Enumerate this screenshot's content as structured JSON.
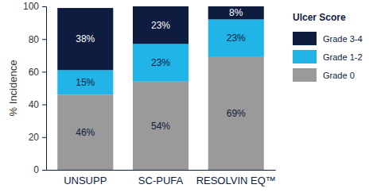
{
  "chart_data": {
    "type": "bar",
    "stacked": true,
    "data_labels": true,
    "grid": false,
    "legend": "right",
    "legend_title": "Ulcer Score",
    "y_label": "% Incidence",
    "categories": [
      "UNSUPP",
      "SC-PUFA",
      "RESOLVIN EQ™"
    ],
    "series": [
      {
        "name": "Grade 0",
        "color": "#9a9a9a",
        "values": [
          46,
          54,
          69
        ],
        "value_labels": [
          "46%",
          "54%",
          "69%"
        ]
      },
      {
        "name": "Grade 1-2",
        "color": "#21b4e6",
        "values": [
          15,
          23,
          23
        ],
        "value_labels": [
          "15%",
          "23%",
          "23%"
        ]
      },
      {
        "name": "Grade 3-4",
        "color": "#0e1c3f",
        "values": [
          38,
          23,
          8
        ],
        "value_labels": [
          "38%",
          "23%",
          "8%"
        ]
      }
    ],
    "ylim": [
      0,
      100
    ],
    "yticks": [
      0,
      20,
      40,
      60,
      80,
      100
    ]
  }
}
